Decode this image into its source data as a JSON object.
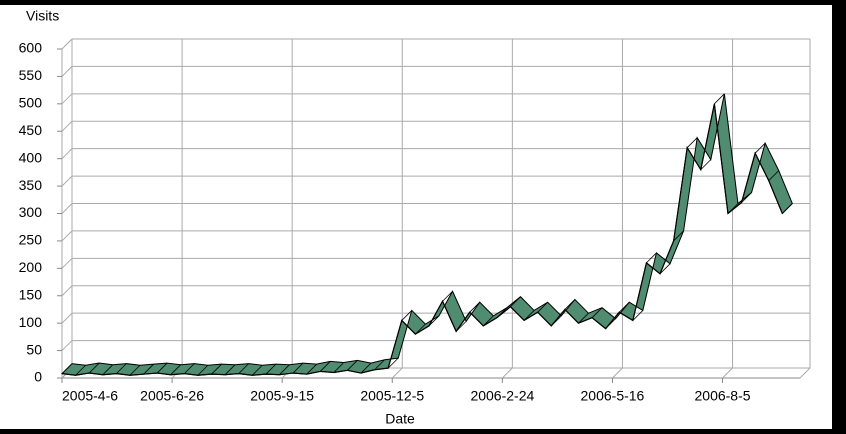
{
  "chart_data": {
    "type": "line",
    "y_label": "Visits",
    "x_label": "Date",
    "x": [
      "2005-4-6",
      "2005-4-16",
      "2005-4-26",
      "2005-5-6",
      "2005-5-16",
      "2005-5-26",
      "2005-6-5",
      "2005-6-15",
      "2005-6-25",
      "2005-7-5",
      "2005-7-15",
      "2005-7-25",
      "2005-8-4",
      "2005-8-14",
      "2005-8-24",
      "2005-9-3",
      "2005-9-13",
      "2005-9-23",
      "2005-10-3",
      "2005-10-13",
      "2005-10-23",
      "2005-11-2",
      "2005-11-12",
      "2005-11-22",
      "2005-12-2",
      "2005-12-12",
      "2005-12-22",
      "2006-1-1",
      "2006-1-11",
      "2006-1-21",
      "2006-1-31",
      "2006-2-10",
      "2006-2-20",
      "2006-3-2",
      "2006-3-12",
      "2006-3-22",
      "2006-4-1",
      "2006-4-11",
      "2006-4-21",
      "2006-5-1",
      "2006-5-11",
      "2006-5-21",
      "2006-5-31",
      "2006-6-10",
      "2006-6-20",
      "2006-6-30",
      "2006-7-10",
      "2006-7-20",
      "2006-7-30",
      "2006-8-9",
      "2006-8-19",
      "2006-8-29",
      "2006-9-8",
      "2006-9-18"
    ],
    "series": [
      {
        "name": "Visits",
        "color": "#4f8c70",
        "values": [
          8,
          5,
          9,
          6,
          8,
          5,
          7,
          9,
          6,
          8,
          5,
          7,
          6,
          8,
          5,
          7,
          6,
          9,
          7,
          12,
          10,
          14,
          9,
          15,
          18,
          105,
          80,
          95,
          140,
          85,
          120,
          95,
          110,
          130,
          105,
          120,
          95,
          125,
          100,
          110,
          90,
          120,
          105,
          210,
          190,
          250,
          420,
          380,
          500,
          300,
          320,
          410,
          360,
          300
        ]
      }
    ],
    "xlim": [
      "2005-4-6",
      "2006-10-1"
    ],
    "xticks": [
      "2005-4-6",
      "2005-6-26",
      "2005-9-15",
      "2005-12-5",
      "2006-2-24",
      "2006-5-16",
      "2006-8-5"
    ],
    "ylim": [
      0,
      600
    ],
    "yticks": [
      0,
      50,
      100,
      150,
      200,
      250,
      300,
      350,
      400,
      450,
      500,
      550,
      600
    ],
    "grid": true
  }
}
